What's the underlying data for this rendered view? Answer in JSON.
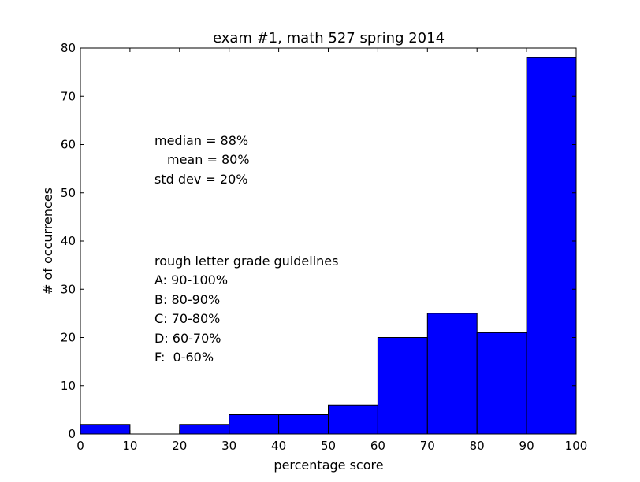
{
  "chart_data": {
    "type": "bar",
    "title": "exam #1, math 527 spring 2014",
    "xlabel": "percentage score",
    "ylabel": "# of occurrences",
    "xlim": [
      0,
      100
    ],
    "ylim": [
      0,
      80
    ],
    "bin_edges": [
      0,
      10,
      20,
      30,
      40,
      50,
      60,
      70,
      80,
      90,
      100
    ],
    "values": [
      2,
      0,
      2,
      4,
      4,
      6,
      20,
      25,
      21,
      78
    ],
    "bar_color": "#0000ff",
    "xticks": [
      "0",
      "10",
      "20",
      "30",
      "40",
      "50",
      "60",
      "70",
      "80",
      "90",
      "100"
    ],
    "yticks": [
      "0",
      "10",
      "20",
      "30",
      "40",
      "50",
      "60",
      "70",
      "80"
    ],
    "grid": false,
    "annotations": {
      "stats": [
        "median = 88%",
        "mean = 80%",
        "std dev = 20%"
      ],
      "guidelines_title": "rough letter grade guidelines",
      "guidelines": [
        "A: 90-100%",
        "B: 80-90%",
        "C: 70-80%",
        "D: 60-70%",
        "F:  0-60%"
      ]
    }
  }
}
